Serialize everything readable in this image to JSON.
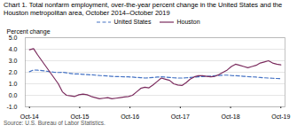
{
  "chart_data": {
    "type": "line",
    "title": "Chart 1. Total nonfarm employment, over-the-year percent change in the United States and the Houston metropolitan area, October 2014–October 2019",
    "ylabel": "Percent change",
    "source": "Source: U.S. Bureau of Labor Statistics.",
    "x": [
      0,
      0.9836,
      1.9672,
      2.9508,
      3.9344,
      4.918,
      5.9016,
      6.8852,
      7.8689,
      8.8525,
      9.8361,
      10.8197,
      11.8033,
      12.7869,
      13.7705,
      14.7541,
      15.7377,
      16.7213,
      17.7049,
      18.6885,
      19.6721,
      20.6557,
      21.6393,
      22.623,
      23.6066,
      24.5902,
      25.5738,
      26.5574,
      27.541,
      28.5246,
      29.5082,
      30.4918,
      31.4754,
      32.459,
      33.4426,
      34.4262,
      35.4098,
      36.3934,
      37.377,
      38.3607,
      39.3443,
      40.3279,
      41.3115,
      42.2951,
      43.2787,
      44.2623,
      45.2459,
      46.2295,
      47.2131,
      48.1967,
      49.1803,
      50.1639,
      51.1475,
      52.1311,
      53.1148,
      54.0984,
      55.082,
      56.0656,
      57.0492,
      58.0328,
      59.0164,
      60
    ],
    "xlim": [
      -1,
      61
    ],
    "xticks": [
      {
        "value": 0,
        "label": "Oct-14"
      },
      {
        "value": 12,
        "label": "Oct-15"
      },
      {
        "value": 24,
        "label": "Oct-16"
      },
      {
        "value": 36,
        "label": "Oct-17"
      },
      {
        "value": 48,
        "label": "Oct-18"
      },
      {
        "value": 60,
        "label": "Oct-19"
      }
    ],
    "ylim": [
      -1.0,
      5.0
    ],
    "yticks": [
      {
        "value": -1.0,
        "label": "-1.0"
      },
      {
        "value": 0.0,
        "label": "0.0"
      },
      {
        "value": 1.0,
        "label": "1.0"
      },
      {
        "value": 2.0,
        "label": "2.0"
      },
      {
        "value": 3.0,
        "label": "3.0"
      },
      {
        "value": 4.0,
        "label": "4.0"
      },
      {
        "value": 5.0,
        "label": "5.0"
      }
    ],
    "grid": true,
    "legend": "top",
    "series": [
      {
        "name": "United States",
        "color": "#4472C4",
        "line_style": "dashed",
        "values": [
          2.05,
          2.2,
          2.18,
          2.15,
          2.1,
          2.05,
          2.0,
          1.98,
          2.0,
          1.95,
          1.9,
          1.85,
          1.85,
          1.82,
          1.8,
          1.78,
          1.75,
          1.72,
          1.7,
          1.68,
          1.65,
          1.63,
          1.62,
          1.6,
          1.6,
          1.58,
          1.55,
          1.53,
          1.5,
          1.52,
          1.55,
          1.58,
          1.6,
          1.58,
          1.55,
          1.52,
          1.5,
          1.5,
          1.52,
          1.55,
          1.58,
          1.6,
          1.62,
          1.65,
          1.67,
          1.7,
          1.72,
          1.75,
          1.75,
          1.72,
          1.7,
          1.68,
          1.65,
          1.62,
          1.6,
          1.58,
          1.55,
          1.52,
          1.5,
          1.48,
          1.46,
          1.44
        ]
      },
      {
        "name": "Houston",
        "color": "#7B2C5E",
        "line_style": "solid",
        "values": [
          3.95,
          4.05,
          3.5,
          3.0,
          2.5,
          2.0,
          1.5,
          1.0,
          0.3,
          0.0,
          -0.05,
          -0.1,
          0.05,
          0.1,
          0.05,
          -0.1,
          -0.2,
          -0.3,
          -0.25,
          -0.2,
          -0.3,
          -0.25,
          -0.2,
          -0.15,
          -0.1,
          0.0,
          0.3,
          0.6,
          0.7,
          0.65,
          0.9,
          1.2,
          1.5,
          1.4,
          1.3,
          1.0,
          0.9,
          0.85,
          1.1,
          1.4,
          1.6,
          1.7,
          1.7,
          1.65,
          1.6,
          1.65,
          1.8,
          2.0,
          2.2,
          2.5,
          2.7,
          2.6,
          2.5,
          2.4,
          2.5,
          2.6,
          2.8,
          2.9,
          3.0,
          2.8,
          2.7,
          2.65
        ]
      }
    ]
  }
}
